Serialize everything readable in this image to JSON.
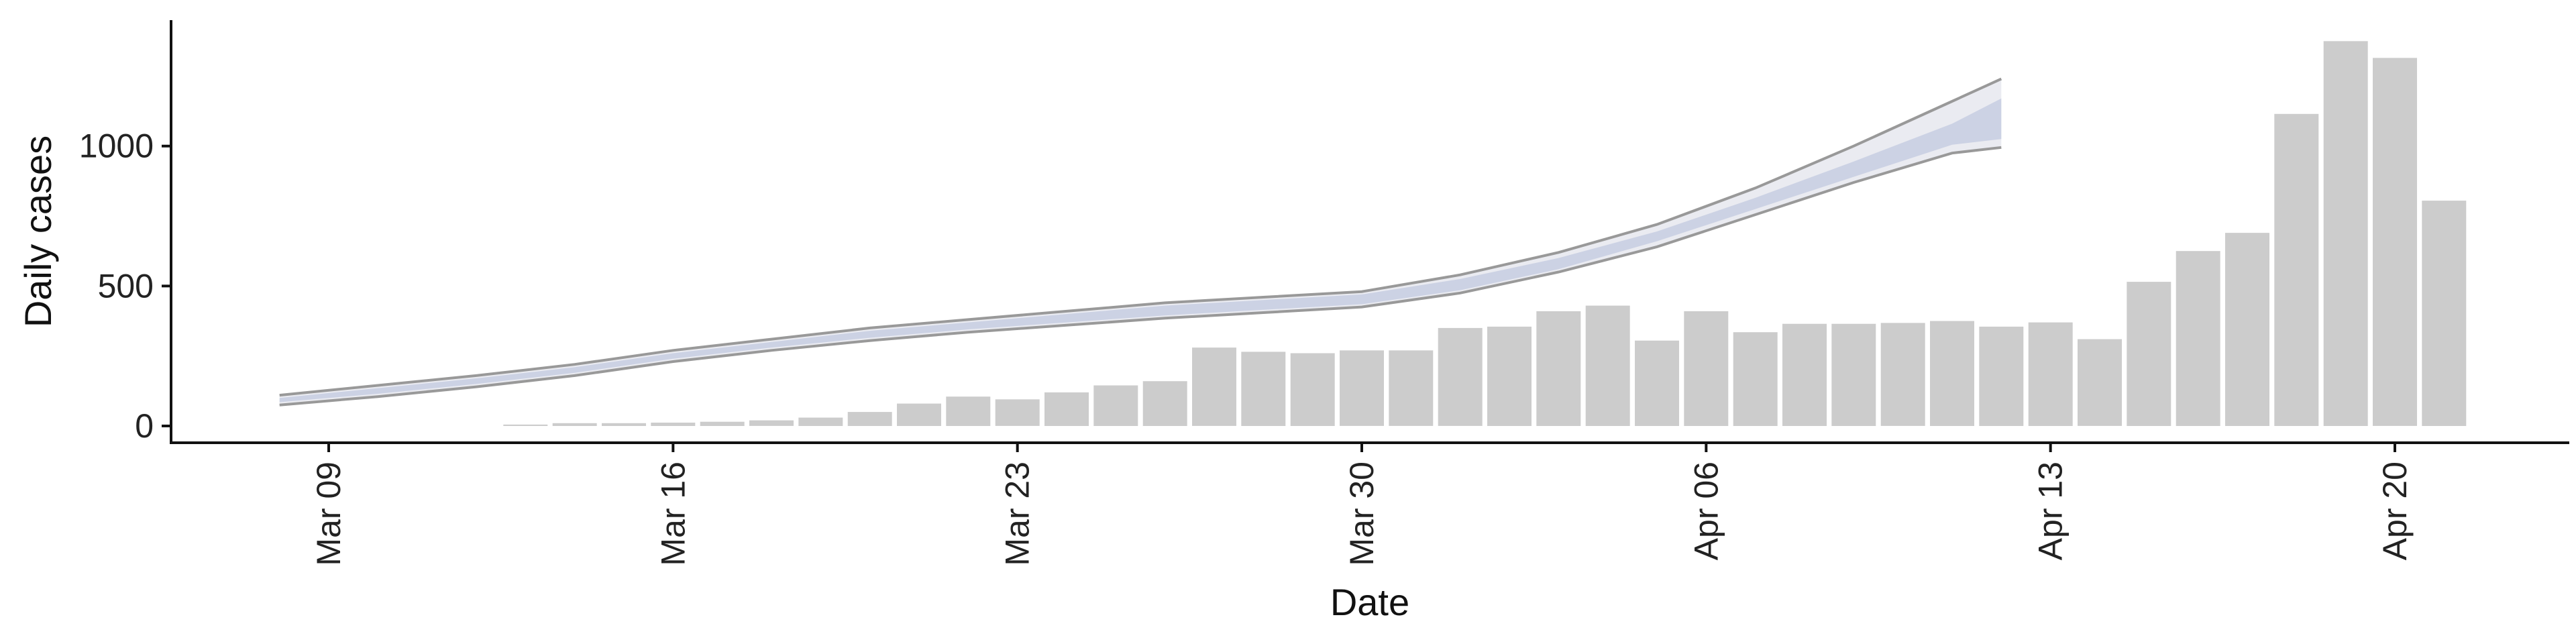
{
  "chart_data": {
    "type": "bar",
    "title": "",
    "xlabel": "Date",
    "ylabel": "Daily cases",
    "x_axis": {
      "type": "date",
      "range": [
        "2020-03-05",
        "2020-04-25"
      ],
      "ticks": [
        {
          "date": "2020-03-09",
          "label": "Mar 09"
        },
        {
          "date": "2020-03-16",
          "label": "Mar 16"
        },
        {
          "date": "2020-03-23",
          "label": "Mar 23"
        },
        {
          "date": "2020-03-30",
          "label": "Mar 30"
        },
        {
          "date": "2020-04-06",
          "label": "Apr 06"
        },
        {
          "date": "2020-04-13",
          "label": "Apr 13"
        },
        {
          "date": "2020-04-20",
          "label": "Apr 20"
        }
      ]
    },
    "y_axis": {
      "range": [
        -60,
        1450
      ],
      "ticks": [
        {
          "value": 0,
          "label": "0"
        },
        {
          "value": 500,
          "label": "500"
        },
        {
          "value": 1000,
          "label": "1000"
        }
      ]
    },
    "grid": false,
    "legend": "none",
    "bars": {
      "color": "#cccccc",
      "dates": [
        "2020-03-13",
        "2020-03-14",
        "2020-03-15",
        "2020-03-16",
        "2020-03-17",
        "2020-03-18",
        "2020-03-19",
        "2020-03-20",
        "2020-03-21",
        "2020-03-22",
        "2020-03-23",
        "2020-03-24",
        "2020-03-25",
        "2020-03-26",
        "2020-03-27",
        "2020-03-28",
        "2020-03-29",
        "2020-03-30",
        "2020-03-31",
        "2020-04-01",
        "2020-04-02",
        "2020-04-03",
        "2020-04-04",
        "2020-04-05",
        "2020-04-06",
        "2020-04-07",
        "2020-04-08",
        "2020-04-09",
        "2020-04-10",
        "2020-04-11",
        "2020-04-12",
        "2020-04-13",
        "2020-04-14",
        "2020-04-15",
        "2020-04-16",
        "2020-04-17",
        "2020-04-18",
        "2020-04-19",
        "2020-04-20",
        "2020-04-21"
      ],
      "values": [
        5,
        10,
        10,
        12,
        15,
        20,
        30,
        50,
        80,
        105,
        95,
        120,
        145,
        160,
        280,
        265,
        260,
        270,
        270,
        350,
        355,
        410,
        430,
        305,
        410,
        335,
        365,
        365,
        368,
        375,
        355,
        370,
        310,
        515,
        625,
        690,
        1115,
        1375,
        1315,
        805
      ]
    },
    "projection": {
      "dates": [
        "2020-03-08",
        "2020-03-10",
        "2020-03-12",
        "2020-03-14",
        "2020-03-16",
        "2020-03-18",
        "2020-03-20",
        "2020-03-22",
        "2020-03-24",
        "2020-03-26",
        "2020-03-28",
        "2020-03-30",
        "2020-04-01",
        "2020-04-03",
        "2020-04-05",
        "2020-04-07",
        "2020-04-09",
        "2020-04-11",
        "2020-04-12"
      ],
      "outer_upper": [
        110,
        145,
        180,
        220,
        270,
        310,
        350,
        380,
        410,
        440,
        460,
        480,
        540,
        620,
        720,
        850,
        1000,
        1160,
        1240
      ],
      "outer_lower": [
        75,
        105,
        140,
        180,
        230,
        270,
        305,
        335,
        360,
        385,
        405,
        425,
        475,
        550,
        640,
        755,
        870,
        975,
        995
      ],
      "inner_upper": [
        100,
        135,
        170,
        210,
        260,
        300,
        340,
        370,
        400,
        430,
        450,
        470,
        525,
        600,
        695,
        815,
        945,
        1080,
        1170
      ],
      "inner_lower": [
        85,
        115,
        150,
        190,
        240,
        280,
        315,
        345,
        370,
        395,
        415,
        435,
        485,
        560,
        660,
        775,
        890,
        1005,
        1025
      ],
      "outer_color": "#e6e8ef",
      "inner_color": "#c9cfe2",
      "line_color": "#999999"
    }
  }
}
